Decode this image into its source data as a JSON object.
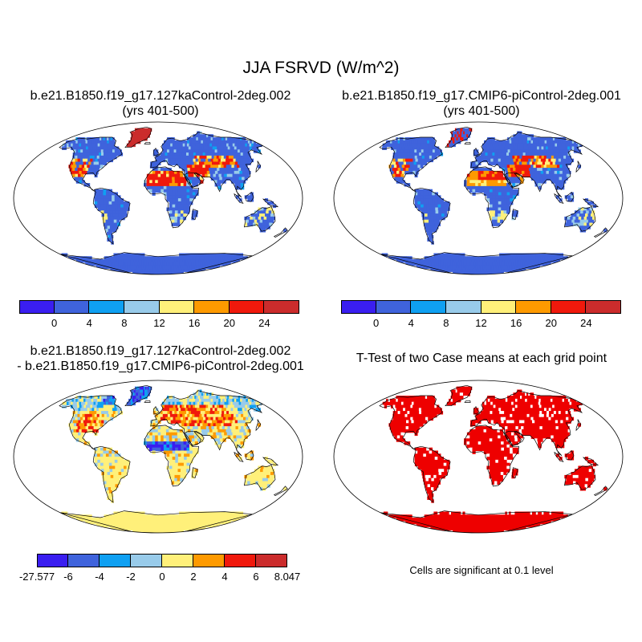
{
  "figure": {
    "title": "JJA FSRVD (W/m^2)",
    "panels": [
      {
        "id": "case1",
        "title_lines": [
          "b.e21.B1850.f19_g17.127kaControl-2deg.002",
          "(yrs 401-500)"
        ],
        "colorbar": {
          "labels": [
            "0",
            "4",
            "8",
            "12",
            "16",
            "20",
            "24"
          ],
          "colors": [
            "#3a1ef0",
            "#3f63dc",
            "#0fa0f2",
            "#98cbea",
            "#fff07a",
            "#fe9a00",
            "#f0190c",
            "#cb2c2c"
          ]
        }
      },
      {
        "id": "case2",
        "title_lines": [
          "b.e21.B1850.f19_g17.CMIP6-piControl-2deg.001",
          "(yrs 401-500)"
        ],
        "colorbar": {
          "labels": [
            "0",
            "4",
            "8",
            "12",
            "16",
            "20",
            "24"
          ],
          "colors": [
            "#3a1ef0",
            "#3f63dc",
            "#0fa0f2",
            "#98cbea",
            "#fff07a",
            "#fe9a00",
            "#f0190c",
            "#cb2c2c"
          ]
        }
      },
      {
        "id": "difference",
        "title_lines": [
          "b.e21.B1850.f19_g17.127kaControl-2deg.002",
          "- b.e21.B1850.f19_g17.CMIP6-piControl-2deg.001"
        ],
        "colorbar": {
          "labels": [
            "-27.577",
            "-6",
            "-4",
            "-2",
            "0",
            "2",
            "4",
            "6",
            "8.047"
          ],
          "colors": [
            "#3a1ef0",
            "#3f63dc",
            "#0fa0f2",
            "#98cbea",
            "#fff07a",
            "#fe9a00",
            "#f0190c",
            "#cb2c2c"
          ]
        }
      },
      {
        "id": "ttest",
        "title_lines": [
          "T-Test of two Case means at each grid point"
        ],
        "note": "Cells are significant at 0.1 level",
        "significant_color": "#ee0000"
      }
    ]
  }
}
